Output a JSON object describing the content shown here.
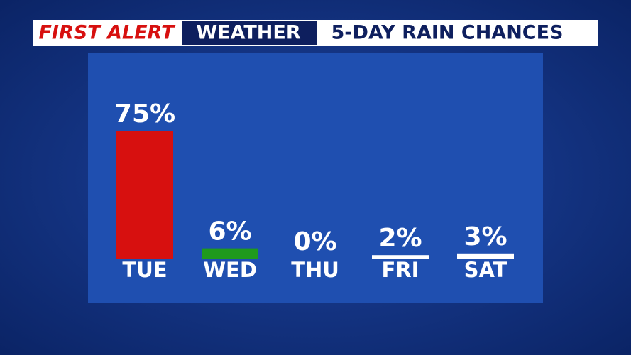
{
  "header": {
    "brand": "FIRST ALERT",
    "section": "WEATHER"
  },
  "chart_data": {
    "type": "bar",
    "title": "5-DAY RAIN CHANCES",
    "categories": [
      "TUE",
      "WED",
      "THU",
      "FRI",
      "SAT"
    ],
    "values": [
      75,
      6,
      0,
      2,
      3
    ],
    "value_labels": [
      "75%",
      "6%",
      "0%",
      "2%",
      "3%"
    ],
    "colors": [
      "#d7100f",
      "#1f9a1c",
      "#ffffff",
      "#ffffff",
      "#ffffff"
    ]
  }
}
